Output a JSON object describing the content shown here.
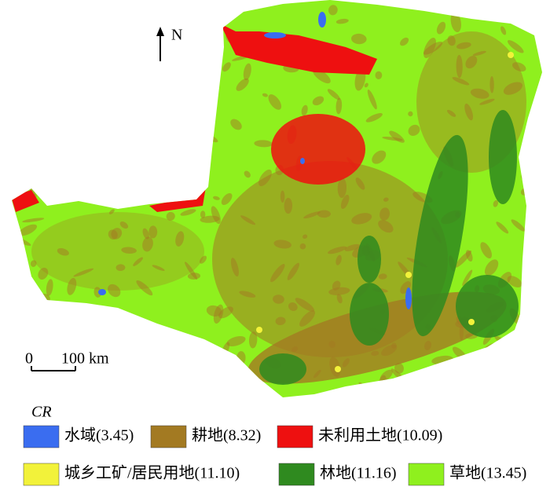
{
  "north_label": "N",
  "scale_bar": {
    "start": "0",
    "end": "100 km"
  },
  "legend": {
    "title": "CR",
    "items": [
      {
        "label": "水域(3.45)",
        "color": "#3a6df0"
      },
      {
        "label": "耕地(8.32)",
        "color": "#a37a22"
      },
      {
        "label": "未利用土地(10.09)",
        "color": "#ee1010"
      },
      {
        "label": "城乡工矿/居民用地(11.10)",
        "color": "#f2f23a"
      },
      {
        "label": "林地(11.16)",
        "color": "#2f8a1f"
      },
      {
        "label": "草地(13.45)",
        "color": "#8ff01e"
      }
    ]
  }
}
